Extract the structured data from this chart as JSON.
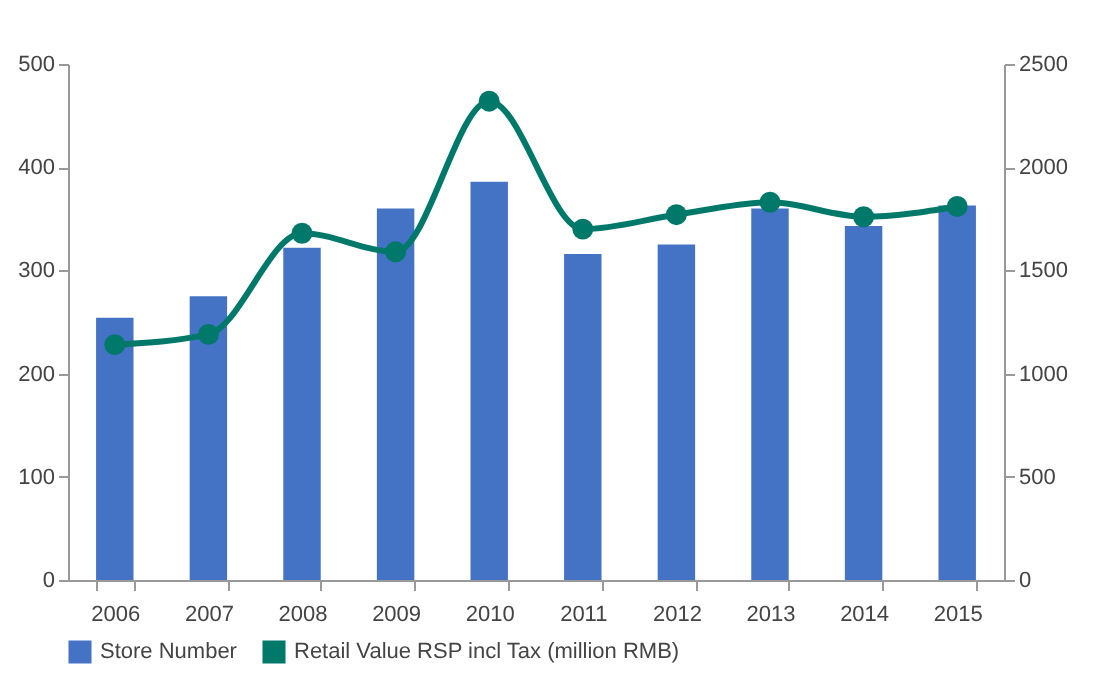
{
  "chart_data": {
    "type": "bar",
    "categories": [
      "2006",
      "2007",
      "2008",
      "2009",
      "2010",
      "2011",
      "2012",
      "2013",
      "2014",
      "2015"
    ],
    "series": [
      {
        "name": "Store Number",
        "color": "#4472c4",
        "values": [
          254,
          275,
          322,
          360,
          386,
          316,
          325,
          360,
          343,
          363
        ]
      },
      {
        "name": "Retail Value RSP incl Tax (million RMB)",
        "type": "line",
        "axis": "y2",
        "color": "#00796b",
        "values": [
          1140,
          1190,
          1680,
          1590,
          2320,
          1700,
          1770,
          1830,
          1760,
          1810
        ]
      }
    ],
    "ylim": [
      0,
      500
    ],
    "yticks": [
      0,
      100,
      200,
      300,
      400,
      500
    ],
    "y2lim": [
      0,
      2500
    ],
    "y2ticks": [
      0,
      500,
      1000,
      1500,
      2000,
      2500
    ],
    "grid": false,
    "legend": "bottom",
    "marker": "circle",
    "line_style": "solid"
  }
}
